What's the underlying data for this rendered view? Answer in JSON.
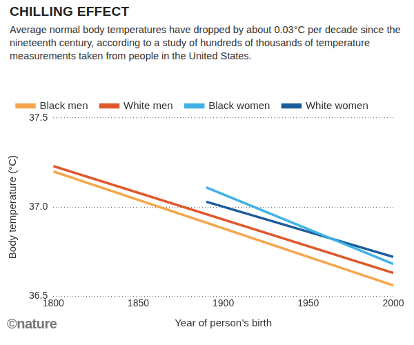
{
  "chart_data": {
    "type": "line",
    "title": "CHILLING EFFECT",
    "subtitle": "Average normal body temperatures have dropped by about 0.03°C per decade since the nineteenth century, according to a study of hundreds of thousands of temperature measurements taken from people in the United States.",
    "x_label": "Year of person’s birth",
    "y_label": "Body temperature (°C)",
    "credit": "©nature",
    "series": [
      {
        "name": "Black men",
        "color": "#f5a64c",
        "x": [
          1800,
          2000
        ],
        "values": [
          37.2,
          36.56
        ]
      },
      {
        "name": "White men",
        "color": "#e0572b",
        "x": [
          1800,
          2000
        ],
        "values": [
          37.23,
          36.63
        ]
      },
      {
        "name": "Black women",
        "color": "#3fb2e5",
        "x": [
          1890,
          2000
        ],
        "values": [
          37.11,
          36.68
        ]
      },
      {
        "name": "White women",
        "color": "#1d5c9c",
        "x": [
          1890,
          2000
        ],
        "values": [
          37.03,
          36.72
        ]
      }
    ],
    "xlim": [
      1800,
      2000
    ],
    "xticks": [
      1800,
      1850,
      1900,
      1950,
      2000
    ],
    "ylim": [
      36.5,
      37.5
    ],
    "yticks": [
      36.5,
      {
        "value": 37,
        "label": "37.0"
      },
      37.5
    ],
    "grid": "y",
    "legend": "top-left"
  }
}
